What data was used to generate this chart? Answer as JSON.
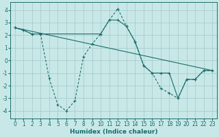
{
  "background_color": "#c8e8e8",
  "grid_color": "#a8cccc",
  "line_color": "#1a6b6b",
  "line1_x": [
    0,
    1,
    2,
    3,
    10,
    11,
    12,
    13,
    14,
    15,
    16,
    17,
    18,
    19,
    20,
    21,
    22,
    23
  ],
  "line1_y": [
    2.6,
    2.4,
    2.1,
    2.1,
    2.1,
    3.2,
    3.2,
    2.7,
    1.5,
    -0.4,
    -1.0,
    -1.0,
    -1.0,
    -3.0,
    -1.5,
    -1.5,
    -0.8,
    -0.8
  ],
  "line2_x": [
    0,
    1,
    2,
    3,
    4,
    5,
    6,
    7,
    8,
    9,
    10,
    11,
    12,
    13,
    14,
    15,
    16,
    17,
    18,
    19,
    20,
    21,
    22,
    23
  ],
  "line2_y": [
    2.6,
    2.4,
    2.1,
    2.1,
    -1.4,
    -3.5,
    -4.0,
    -3.2,
    0.3,
    1.3,
    2.1,
    3.2,
    4.1,
    2.7,
    1.5,
    -0.4,
    -1.0,
    -2.2,
    -2.6,
    -3.0,
    -1.5,
    -1.5,
    -0.8,
    -0.8
  ],
  "line3_x": [
    0,
    23
  ],
  "line3_y": [
    2.6,
    -0.8
  ],
  "xlabel": "Humidex (Indice chaleur)",
  "yticks": [
    -4,
    -3,
    -2,
    -1,
    0,
    1,
    2,
    3,
    4
  ],
  "xticks": [
    0,
    1,
    2,
    3,
    4,
    5,
    6,
    7,
    8,
    9,
    10,
    11,
    12,
    13,
    14,
    15,
    16,
    17,
    18,
    19,
    20,
    21,
    22,
    23
  ],
  "xlim": [
    -0.5,
    23.5
  ],
  "ylim": [
    -4.6,
    4.6
  ],
  "xlabel_fontsize": 6.5,
  "tick_fontsize": 5.5
}
